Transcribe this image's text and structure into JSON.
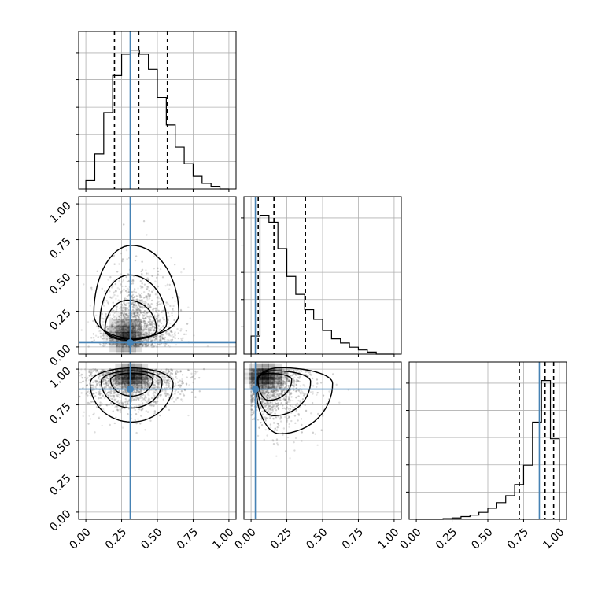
{
  "chart_data": {
    "type": "corner",
    "parameters": 3,
    "tick_labels": [
      "0.00",
      "0.25",
      "0.50",
      "0.75",
      "1.00"
    ],
    "truths": [
      0.31,
      0.03,
      0.86
    ],
    "quantiles": [
      [
        0.2,
        0.37,
        0.57
      ],
      [
        0.05,
        0.16,
        0.38
      ],
      [
        0.72,
        0.9,
        0.96
      ]
    ],
    "histograms": [
      {
        "range": [
          0.0,
          1.0
        ],
        "counts": [
          0.06,
          0.25,
          0.55,
          0.82,
          0.97,
          1.0,
          0.97,
          0.86,
          0.66,
          0.46,
          0.3,
          0.18,
          0.09,
          0.04,
          0.015,
          0.0
        ]
      },
      {
        "range": [
          0.0,
          1.0
        ],
        "counts": [
          0.13,
          1.0,
          0.95,
          0.76,
          0.56,
          0.43,
          0.32,
          0.25,
          0.17,
          0.11,
          0.08,
          0.05,
          0.03,
          0.015,
          0.0,
          0.0
        ]
      },
      {
        "range": [
          0.0,
          1.0
        ],
        "counts": [
          0.0,
          0.0,
          0.0,
          0.005,
          0.01,
          0.02,
          0.03,
          0.05,
          0.08,
          0.12,
          0.17,
          0.25,
          0.39,
          0.7,
          1.0,
          0.58
        ]
      }
    ],
    "joint_distributions": [
      {
        "x_param": 0,
        "y_param": 1,
        "center": [
          0.28,
          0.08
        ],
        "spread": [
          0.16,
          0.16
        ]
      },
      {
        "x_param": 0,
        "y_param": 2,
        "center": [
          0.32,
          0.95
        ],
        "spread": [
          0.17,
          0.1
        ]
      },
      {
        "x_param": 1,
        "y_param": 2,
        "center": [
          0.1,
          0.95
        ],
        "spread": [
          0.12,
          0.12
        ]
      }
    ],
    "grid": true,
    "colors": {
      "truth": "#4682b4",
      "contour": "#000000",
      "samples": "#6e6e6e"
    }
  }
}
